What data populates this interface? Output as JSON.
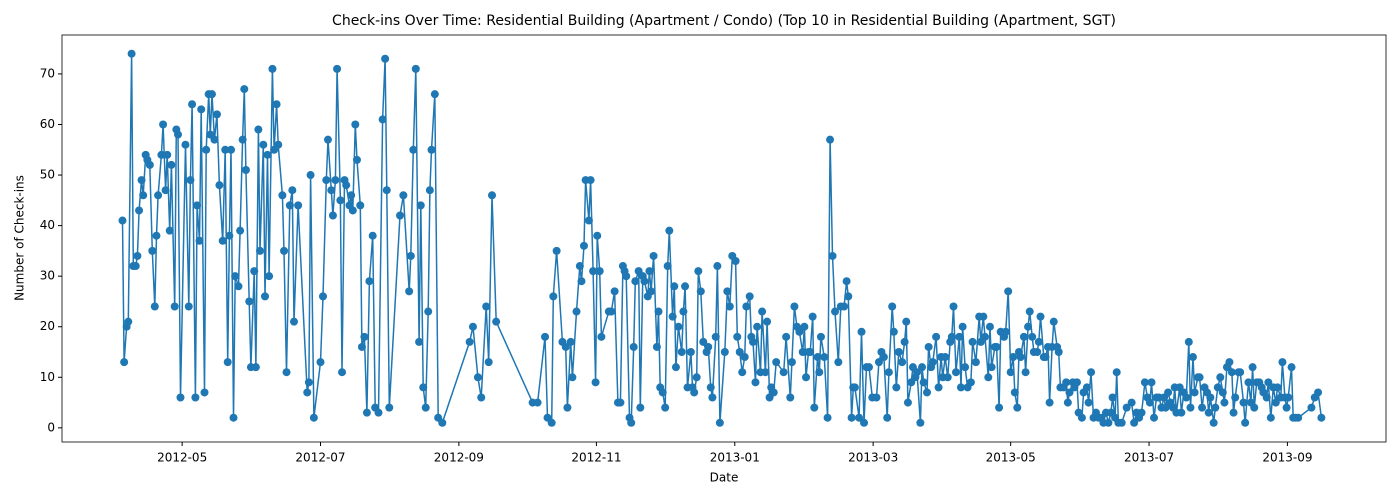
{
  "chart_data": {
    "type": "line",
    "title": "Check-ins Over Time: Residential Building (Apartment / Condo) (Top 10 in Residential Building (Apartment, SGT)",
    "xlabel": "Date",
    "ylabel": "Number of Check-ins",
    "color": "#1f77b4",
    "xlim": [
      2012.188,
      2013.786
    ],
    "ylim": [
      -2.8,
      77.7
    ],
    "xticks": [
      {
        "value": 2012.333,
        "label": "2012-05"
      },
      {
        "value": 2012.5,
        "label": "2012-07"
      },
      {
        "value": 2012.667,
        "label": "2012-09"
      },
      {
        "value": 2012.833,
        "label": "2012-11"
      },
      {
        "value": 2013.0,
        "label": "2013-01"
      },
      {
        "value": 2013.167,
        "label": "2013-03"
      },
      {
        "value": 2013.333,
        "label": "2013-05"
      },
      {
        "value": 2013.5,
        "label": "2013-07"
      },
      {
        "value": 2013.667,
        "label": "2013-09"
      }
    ],
    "yticks": [
      0,
      10,
      20,
      30,
      40,
      50,
      60,
      70
    ],
    "x": [
      2012.261,
      2012.263,
      2012.266,
      2012.268,
      2012.272,
      2012.274,
      2012.277,
      2012.279,
      2012.281,
      2012.284,
      2012.286,
      2012.289,
      2012.291,
      2012.294,
      2012.297,
      2012.3,
      2012.302,
      2012.304,
      2012.308,
      2012.31,
      2012.313,
      2012.315,
      2012.318,
      2012.32,
      2012.324,
      2012.326,
      2012.328,
      2012.331,
      2012.337,
      2012.341,
      2012.343,
      2012.345,
      2012.349,
      2012.351,
      2012.354,
      2012.356,
      2012.36,
      2012.362,
      2012.365,
      2012.367,
      2012.369,
      2012.372,
      2012.375,
      2012.378,
      2012.382,
      2012.385,
      2012.388,
      2012.39,
      2012.392,
      2012.395,
      2012.397,
      2012.401,
      2012.403,
      2012.406,
      2012.408,
      2012.41,
      2012.414,
      2012.416,
      2012.42,
      2012.422,
      2012.425,
      2012.427,
      2012.431,
      2012.433,
      2012.436,
      2012.438,
      2012.442,
      2012.444,
      2012.447,
      2012.449,
      2012.454,
      2012.456,
      2012.459,
      2012.463,
      2012.466,
      2012.468,
      2012.473,
      2012.484,
      2012.486,
      2012.488,
      2012.492,
      2012.5,
      2012.503,
      2012.507,
      2012.509,
      2012.513,
      2012.515,
      2012.518,
      2012.52,
      2012.524,
      2012.526,
      2012.529,
      2012.531,
      2012.535,
      2012.537,
      2012.539,
      2012.542,
      2012.544,
      2012.548,
      2012.55,
      2012.553,
      2012.556,
      2012.559,
      2012.563,
      2012.566,
      2012.57,
      2012.575,
      2012.578,
      2012.58,
      2012.583,
      2012.596,
      2012.6,
      2012.607,
      2012.609,
      2012.612,
      2012.615,
      2012.619,
      2012.621,
      2012.624,
      2012.627,
      2012.63,
      2012.632,
      2012.634,
      2012.638,
      2012.642,
      2012.647,
      2012.68,
      2012.684,
      2012.69,
      2012.694,
      2012.7,
      2012.703,
      2012.707,
      2012.712,
      2012.756,
      2012.762,
      2012.771,
      2012.774,
      2012.779,
      2012.781,
      2012.785,
      2012.792,
      2012.796,
      2012.798,
      2012.802,
      2012.804,
      2012.809,
      2012.813,
      2012.815,
      2012.818,
      2012.82,
      2012.824,
      2012.826,
      2012.829,
      2012.832,
      2012.834,
      2012.837,
      2012.839,
      2012.848,
      2012.851,
      2012.855,
      2012.859,
      2012.862,
      2012.865,
      2012.867,
      2012.869,
      2012.873,
      2012.875,
      2012.878,
      2012.88,
      2012.884,
      2012.886,
      2012.889,
      2012.891,
      2012.895,
      2012.897,
      2012.899,
      2012.902,
      2012.906,
      2012.908,
      2012.91,
      2012.913,
      2012.916,
      2012.919,
      2012.921,
      2012.925,
      2012.927,
      2012.929,
      2012.932,
      2012.936,
      2012.938,
      2012.94,
      2012.943,
      2012.947,
      2012.949,
      2012.951,
      2012.954,
      2012.956,
      2012.959,
      2012.962,
      2012.966,
      2012.968,
      2012.971,
      2012.973,
      2012.977,
      2012.979,
      2012.982,
      2012.988,
      2012.991,
      2012.994,
      2012.997,
      2013.001,
      2013.003,
      2013.006,
      2013.009,
      2013.012,
      2013.014,
      2013.018,
      2013.02,
      2013.022,
      2013.025,
      2013.027,
      2013.031,
      2013.033,
      2013.037,
      2013.039,
      2013.042,
      2013.044,
      2013.047,
      2013.05,
      2013.059,
      2013.062,
      2013.067,
      2013.069,
      2013.072,
      2013.075,
      2013.078,
      2013.082,
      2013.084,
      2013.086,
      2013.089,
      2013.091,
      2013.094,
      2013.096,
      2013.1,
      2013.102,
      2013.104,
      2013.108,
      2013.112,
      2013.115,
      2013.118,
      2013.121,
      2013.125,
      2013.128,
      2013.132,
      2013.135,
      2013.137,
      2013.141,
      2013.143,
      2013.145,
      2013.15,
      2013.153,
      2013.156,
      2013.159,
      2013.162,
      2013.166,
      2013.171,
      2013.174,
      2013.177,
      2013.18,
      2013.184,
      2013.186,
      2013.19,
      2013.192,
      2013.195,
      2013.198,
      2013.202,
      2013.205,
      2013.207,
      2013.209,
      2013.213,
      2013.215,
      2013.218,
      2013.22,
      2013.224,
      2013.226,
      2013.228,
      2013.232,
      2013.234,
      2013.237,
      2013.239,
      2013.243,
      2013.246,
      2013.249,
      2013.251,
      2013.254,
      2013.257,
      2013.26,
      2013.262,
      2013.264,
      2013.267,
      2013.271,
      2013.273,
      2013.275,
      2013.278,
      2013.281,
      2013.285,
      2013.287,
      2013.291,
      2013.295,
      2013.297,
      2013.3,
      2013.302,
      2013.306,
      2013.308,
      2013.31,
      2013.314,
      2013.316,
      2013.319,
      2013.321,
      2013.325,
      2013.327,
      2013.33,
      2013.333,
      2013.336,
      2013.338,
      2013.341,
      2013.343,
      2013.345,
      2013.349,
      2013.351,
      2013.354,
      2013.356,
      2013.359,
      2013.361,
      2013.365,
      2013.367,
      2013.369,
      2013.373,
      2013.375,
      2013.378,
      2013.38,
      2013.383,
      2013.385,
      2013.389,
      2013.391,
      2013.393,
      2013.397,
      2013.4,
      2013.402,
      2013.404,
      2013.408,
      2013.41,
      2013.413,
      2013.415,
      2013.419,
      2013.421,
      2013.425,
      2013.427,
      2013.43,
      2013.433,
      2013.436,
      2013.439,
      2013.442,
      2013.445,
      2013.448,
      2013.451,
      2013.454,
      2013.456,
      2013.459,
      2013.461,
      2013.463,
      2013.467,
      2013.473,
      2013.479,
      2013.482,
      2013.485,
      2013.488,
      2013.491,
      2013.495,
      2013.498,
      2013.501,
      2013.503,
      2013.506,
      2013.509,
      2013.512,
      2013.515,
      2013.518,
      2013.52,
      2013.523,
      2013.526,
      2013.529,
      2013.531,
      2013.533,
      2013.537,
      2013.539,
      2013.542,
      2013.545,
      2013.548,
      2013.55,
      2013.553,
      2013.555,
      2013.559,
      2013.561,
      2013.564,
      2013.567,
      2013.57,
      2013.572,
      2013.574,
      2013.578,
      2013.58,
      2013.583,
      2013.586,
      2013.589,
      2013.591,
      2013.594,
      2013.597,
      2013.6,
      2013.602,
      2013.604,
      2013.608,
      2013.61,
      2013.614,
      2013.616,
      2013.62,
      2013.623,
      2013.625,
      2013.627,
      2013.63,
      2013.633,
      2013.636,
      2013.638,
      2013.642,
      2013.644,
      2013.647,
      2013.65,
      2013.653,
      2013.655,
      2013.659,
      2013.661,
      2013.664,
      2013.666,
      2013.668,
      2013.672,
      2013.674,
      2013.677,
      2013.68,
      2013.696,
      2013.7,
      2013.704,
      2013.708
    ],
    "values": [
      41,
      13,
      20,
      21,
      74,
      32,
      32,
      34,
      43,
      49,
      46,
      54,
      53,
      52,
      35,
      24,
      38,
      46,
      54,
      60,
      47,
      54,
      39,
      52,
      24,
      59,
      58,
      6,
      56,
      24,
      49,
      64,
      6,
      44,
      37,
      63,
      7,
      55,
      66,
      58,
      66,
      57,
      62,
      48,
      37,
      55,
      13,
      38,
      55,
      2,
      30,
      28,
      39,
      57,
      67,
      51,
      25,
      12,
      31,
      12,
      59,
      35,
      56,
      26,
      54,
      30,
      71,
      55,
      64,
      56,
      46,
      35,
      11,
      44,
      47,
      21,
      44,
      7,
      9,
      50,
      2,
      13,
      26,
      49,
      57,
      47,
      42,
      49,
      71,
      45,
      11,
      49,
      48,
      44,
      46,
      43,
      60,
      53,
      44,
      16,
      18,
      3,
      29,
      38,
      4,
      3,
      61,
      73,
      47,
      4,
      42,
      46,
      27,
      34,
      55,
      71,
      17,
      44,
      8,
      4,
      23,
      47,
      55,
      66,
      2,
      1,
      17,
      20,
      10,
      6,
      24,
      13,
      46,
      21,
      5,
      5,
      18,
      2,
      1,
      26,
      35,
      17,
      16,
      4,
      17,
      10,
      23,
      32,
      29,
      36,
      49,
      41,
      49,
      31,
      9,
      38,
      31,
      18,
      23,
      23,
      27,
      5,
      5,
      32,
      31,
      30,
      2,
      1,
      16,
      29,
      31,
      4,
      30,
      29,
      26,
      31,
      27,
      34,
      16,
      23,
      8,
      7,
      4,
      32,
      39,
      22,
      28,
      12,
      20,
      15,
      23,
      28,
      8,
      15,
      8,
      7,
      10,
      31,
      27,
      17,
      15,
      16,
      8,
      6,
      18,
      32,
      1,
      15,
      27,
      24,
      34,
      33,
      18,
      15,
      11,
      14,
      24,
      26,
      18,
      17,
      9,
      20,
      11,
      23,
      11,
      21,
      6,
      8,
      7,
      13,
      11,
      18,
      6,
      13,
      24,
      20,
      19,
      15,
      20,
      10,
      15,
      15,
      22,
      4,
      14,
      11,
      18,
      14,
      2,
      57,
      34,
      23,
      13,
      24,
      24,
      29,
      26,
      2,
      8,
      8,
      2,
      19,
      1,
      12,
      12,
      6,
      6,
      13,
      15,
      14,
      2,
      11,
      24,
      19,
      8,
      15,
      13,
      17,
      21,
      5,
      9,
      12,
      10,
      11,
      1,
      12,
      9,
      7,
      16,
      12,
      13,
      18,
      8,
      14,
      10,
      14,
      10,
      17,
      18,
      24,
      11,
      18,
      8,
      20,
      12,
      8,
      9,
      17,
      13,
      22,
      17,
      22,
      18,
      10,
      20,
      12,
      16,
      16,
      4,
      19,
      18,
      19,
      27,
      11,
      14,
      7,
      4,
      15,
      14,
      18,
      11,
      20,
      23,
      18,
      15,
      15,
      17,
      22,
      14,
      14,
      16,
      5,
      16,
      21,
      16,
      15,
      8,
      8,
      9,
      5,
      7,
      9,
      8,
      9,
      3,
      2,
      7,
      8,
      5,
      11,
      2,
      3,
      2,
      2,
      1,
      3,
      1,
      3,
      6,
      2,
      11,
      1,
      1,
      4,
      5,
      1,
      3,
      2,
      3,
      9,
      6,
      5,
      9,
      2,
      6,
      6,
      4,
      6,
      4,
      7,
      5,
      4,
      8,
      3,
      8,
      3,
      7,
      6,
      17,
      4,
      14,
      7,
      10,
      10,
      4,
      8,
      7,
      3,
      6,
      1,
      4,
      8,
      10,
      7,
      5,
      12,
      13,
      11,
      3,
      6,
      11,
      11,
      5,
      1,
      9,
      5,
      12,
      4,
      9,
      9,
      8,
      7,
      6,
      9,
      2,
      8,
      5,
      8,
      6,
      13,
      6,
      4,
      6,
      12,
      2,
      2,
      2,
      4,
      6,
      7,
      2
    ]
  }
}
